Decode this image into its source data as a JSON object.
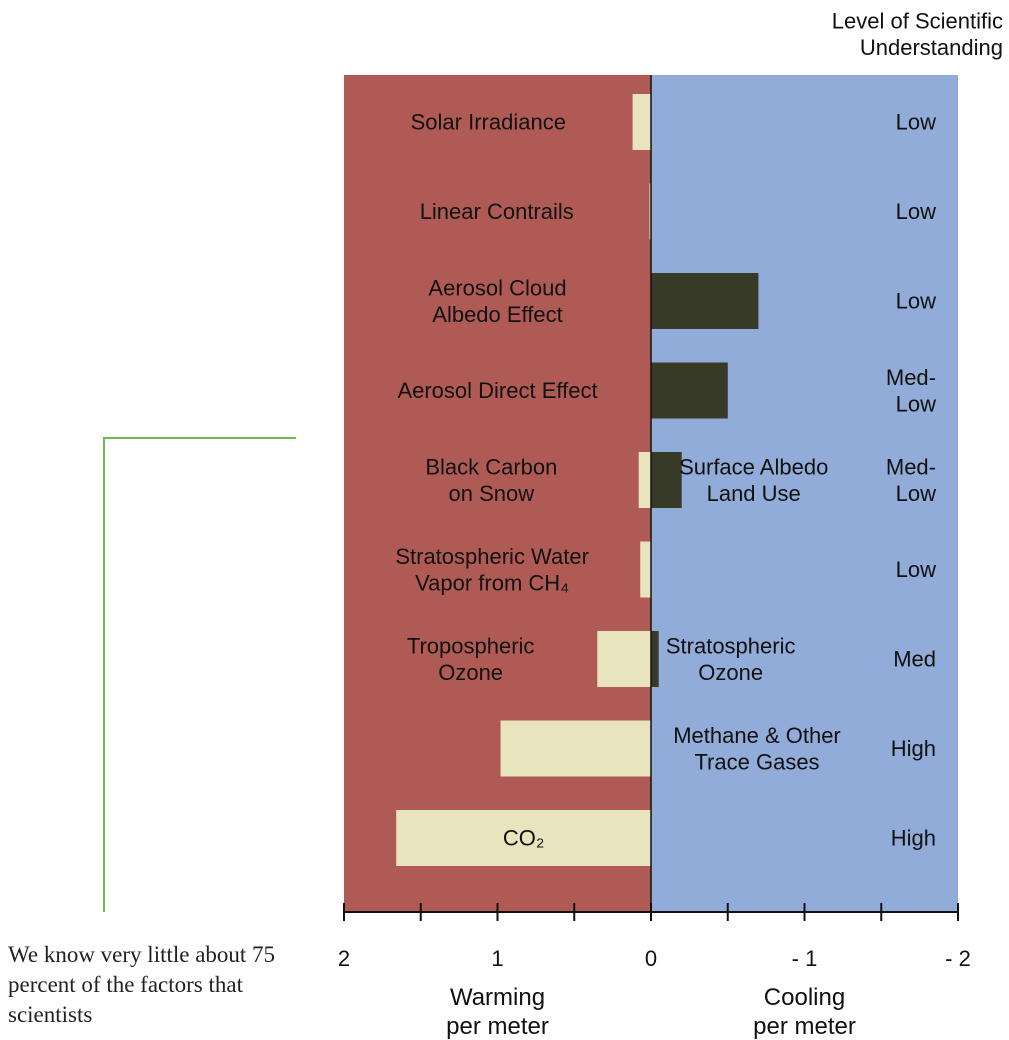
{
  "chart_data": {
    "type": "bar",
    "orientation": "horizontal",
    "x_direction": "reversed",
    "xlim": [
      2,
      -2
    ],
    "xticks": [
      "2",
      "1",
      "0",
      "- 1",
      "- 2"
    ],
    "understanding_header": [
      "Level of Scientific",
      "Understanding"
    ],
    "xlabel_left": [
      "Warming",
      "per meter"
    ],
    "xlabel_right": [
      "Cooling",
      "per meter"
    ],
    "colors": {
      "warming_bg": "#b05a55",
      "cooling_bg": "#91acd8",
      "warming_bar": "#e8e4bd",
      "cooling_bar": "#373a27",
      "annotation_line": "#6cbd45"
    },
    "factors": [
      {
        "left_label": [
          "Solar Irradiance"
        ],
        "right_label": [],
        "warming": 0.12,
        "cooling": 0,
        "understanding": [
          "Low"
        ]
      },
      {
        "left_label": [
          "Linear Contrails"
        ],
        "right_label": [],
        "warming": 0.01,
        "cooling": 0,
        "understanding": [
          "Low"
        ]
      },
      {
        "left_label": [
          "Aerosol Cloud",
          "Albedo Effect"
        ],
        "right_label": [],
        "warming": 0,
        "cooling": 0.7,
        "understanding": [
          "Low"
        ]
      },
      {
        "left_label": [
          "Aerosol Direct Effect"
        ],
        "right_label": [],
        "warming": 0,
        "cooling": 0.5,
        "understanding": [
          "Med-",
          "Low"
        ]
      },
      {
        "left_label": [
          "Black Carbon",
          "on Snow"
        ],
        "right_label": [
          "Surface Albedo",
          "Land Use"
        ],
        "warming": 0.08,
        "cooling": 0.2,
        "understanding": [
          "Med-",
          "Low"
        ]
      },
      {
        "left_label": [
          "Stratospheric Water",
          "Vapor from CH₄"
        ],
        "right_label": [],
        "warming": 0.07,
        "cooling": 0,
        "understanding": [
          "Low"
        ]
      },
      {
        "left_label": [
          "Tropospheric",
          "Ozone"
        ],
        "right_label": [
          "Stratospheric",
          "Ozone"
        ],
        "warming": 0.35,
        "cooling": 0.05,
        "understanding": [
          "Med"
        ]
      },
      {
        "left_label": [],
        "right_label": [
          "Methane & Other",
          "Trace Gases"
        ],
        "warming": 0.98,
        "cooling": 0,
        "understanding": [
          "High"
        ]
      },
      {
        "left_label": [],
        "right_label": [],
        "inner_label": "CO₂",
        "warming": 1.66,
        "cooling": 0,
        "understanding": [
          "High"
        ]
      }
    ]
  },
  "caption": "We know very little about 75 percent of the factors that scientists"
}
